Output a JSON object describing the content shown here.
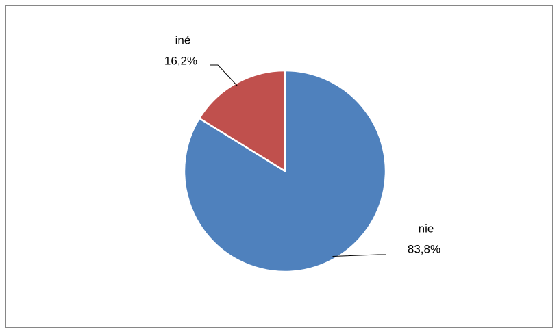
{
  "chart_data": {
    "type": "pie",
    "categories": [
      "nie",
      "iné"
    ],
    "values": [
      83.8,
      16.2
    ],
    "value_labels": [
      "83,8%",
      "16,2%"
    ],
    "colors": [
      "#4f81bd",
      "#c0504d"
    ]
  }
}
